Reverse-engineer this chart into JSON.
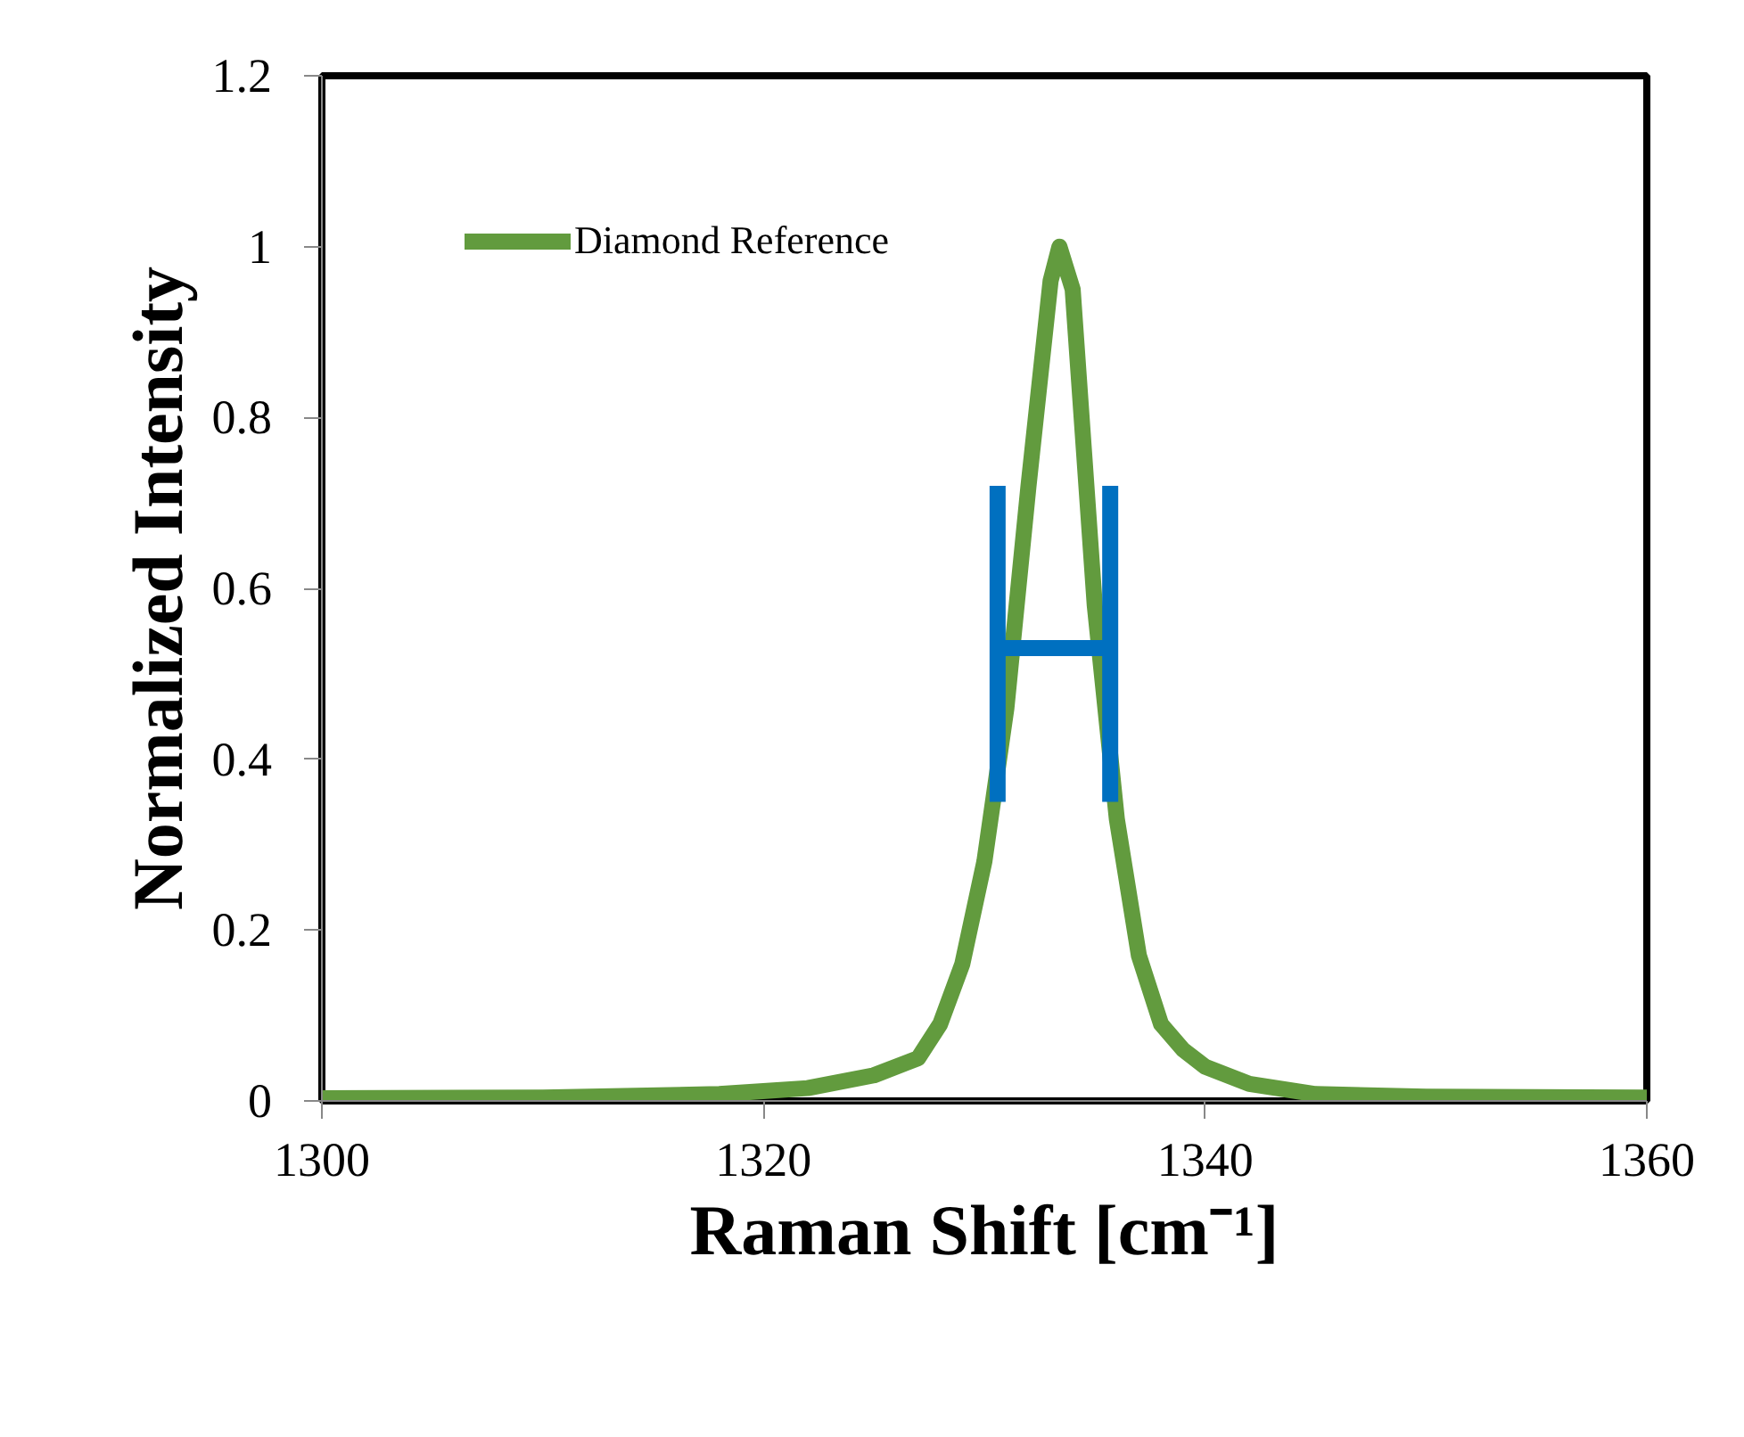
{
  "chart_data": {
    "type": "line",
    "xlabel": "Raman Shift [cm⁻¹]",
    "ylabel": "Normalized Intensity",
    "xlim": [
      1300,
      1360
    ],
    "xticks": [
      1300,
      1320,
      1340,
      1360
    ],
    "ylim": [
      0,
      1.2
    ],
    "yticks": [
      0,
      0.2,
      0.4,
      0.6,
      0.8,
      1,
      1.2
    ],
    "grid": false,
    "legend": "top left",
    "series": [
      {
        "name": "Diamond Reference",
        "color": "#629b3e",
        "x": [
          1300,
          1310,
          1318,
          1322,
          1325,
          1327,
          1328,
          1329,
          1330,
          1331,
          1332,
          1333,
          1333.4,
          1334,
          1335,
          1336,
          1337,
          1338,
          1339,
          1340,
          1342,
          1345,
          1350,
          1360
        ],
        "values": [
          0.003,
          0.004,
          0.008,
          0.015,
          0.03,
          0.05,
          0.09,
          0.16,
          0.28,
          0.46,
          0.72,
          0.96,
          1.0,
          0.95,
          0.58,
          0.33,
          0.17,
          0.09,
          0.06,
          0.04,
          0.02,
          0.008,
          0.005,
          0.004
        ]
      },
      {
        "color": "#0070c0",
        "x": [
          1330.6,
          1330.6,
          null,
          1330.6,
          1335.7,
          null,
          1335.7,
          1335.7
        ],
        "values": [
          0.35,
          0.72,
          null,
          0.53,
          0.53,
          null,
          0.35,
          0.72
        ]
      }
    ]
  }
}
